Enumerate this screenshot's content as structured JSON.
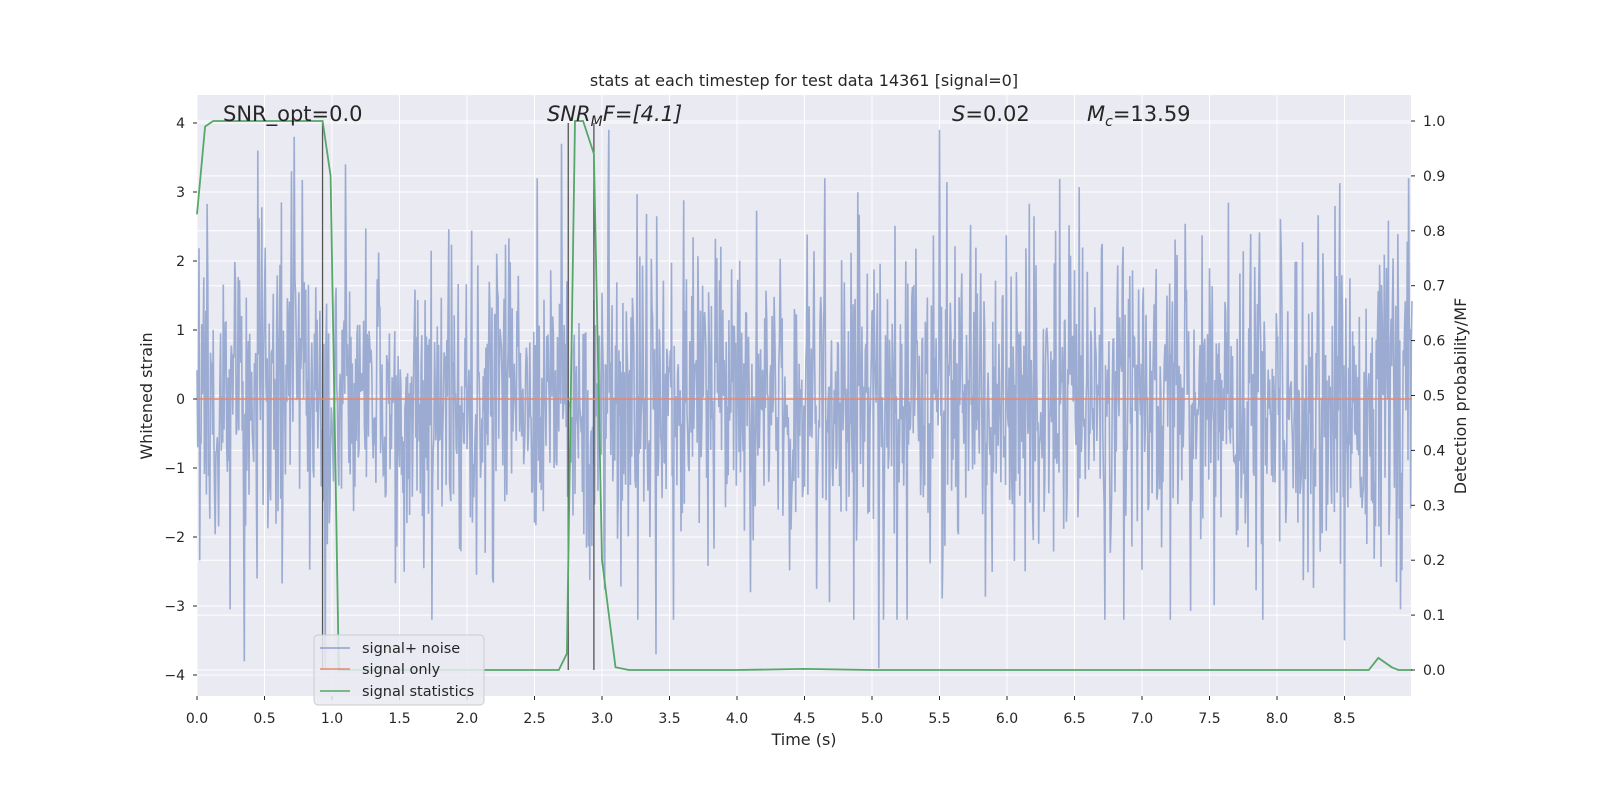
{
  "chart_data": {
    "type": "line",
    "title": "stats at each timestep for test data 14361 [signal=0]",
    "xlabel": "Time (s)",
    "ylabel": "Whitened strain",
    "y2label": "Detection probability/MF",
    "xlim": [
      0,
      9.0
    ],
    "ylim": [
      -4.3,
      4.4
    ],
    "y2lim": [
      -0.047,
      1.047
    ],
    "x_ticks": [
      "0.0",
      "0.5",
      "1.0",
      "1.5",
      "2.0",
      "2.5",
      "3.0",
      "3.5",
      "4.0",
      "4.5",
      "5.0",
      "5.5",
      "6.0",
      "6.5",
      "7.0",
      "7.5",
      "8.0",
      "8.5"
    ],
    "y_ticks": [
      "4",
      "3",
      "2",
      "1",
      "0",
      "−1",
      "−2",
      "−3",
      "−4"
    ],
    "y2_ticks": [
      "1.0",
      "0.9",
      "0.8",
      "0.7",
      "0.6",
      "0.5",
      "0.4",
      "0.3",
      "0.2",
      "0.1",
      "0.0"
    ],
    "grid": true,
    "legend_position": "lower-left",
    "annotations": {
      "snr_opt": "SNR_opt=0.0",
      "snr_mf_main": "SNR",
      "snr_mf_sub": "M",
      "snr_mf_rest": "F=[4.1]",
      "s_main": "S",
      "s_rest": "=0.02",
      "mc_main": "M",
      "mc_sub": "c",
      "mc_rest": "=13.59"
    },
    "vertical_lines_x": [
      0.93,
      2.75,
      2.94
    ],
    "series": [
      {
        "name": "signal+ noise",
        "color": "#8da0cb",
        "description_values": "whitened noise, roughly between -4 and 4",
        "peak_samples": [
          {
            "x": 0.45,
            "y": 3.6
          },
          {
            "x": 0.7,
            "y": 3.3
          },
          {
            "x": 0.72,
            "y": 3.8
          },
          {
            "x": 1.1,
            "y": 3.4
          },
          {
            "x": 2.7,
            "y": 3.7
          },
          {
            "x": 3.05,
            "y": 3.9
          },
          {
            "x": 5.5,
            "y": 3.9
          },
          {
            "x": 8.5,
            "y": 3.5
          },
          {
            "x": 0.35,
            "y": -3.8
          },
          {
            "x": 0.95,
            "y": -3.9
          },
          {
            "x": 3.4,
            "y": -3.7
          },
          {
            "x": 5.05,
            "y": -3.9
          },
          {
            "x": 8.5,
            "y": -3.5
          }
        ]
      },
      {
        "name": "signal only",
        "color": "#e5886e",
        "values_note": "flat at 0",
        "x": [
          0,
          9.0
        ],
        "y": [
          0,
          0
        ]
      },
      {
        "name": "signal statistics",
        "color": "#55a868",
        "axis": "right",
        "x": [
          0,
          0.06,
          0.12,
          0.2,
          0.93,
          0.99,
          1.05,
          1.1,
          1.2,
          2.0,
          2.4,
          2.68,
          2.74,
          2.8,
          2.86,
          2.94,
          3.0,
          3.1,
          3.2,
          4.0,
          4.5,
          5.0,
          6.0,
          7.0,
          8.0,
          8.6,
          8.68,
          8.75,
          8.85,
          8.9,
          9.0
        ],
        "y": [
          0.83,
          0.99,
          1.0,
          1.0,
          1.0,
          0.9,
          0.0,
          0.0,
          0.0,
          0.0,
          0.0,
          0.0,
          0.03,
          1.0,
          1.0,
          0.94,
          0.2,
          0.005,
          0.0,
          0.0,
          0.002,
          0.0,
          0.0,
          0.0,
          0.0,
          0.0,
          0.0,
          0.022,
          0.005,
          0.0,
          0.0
        ]
      }
    ]
  }
}
